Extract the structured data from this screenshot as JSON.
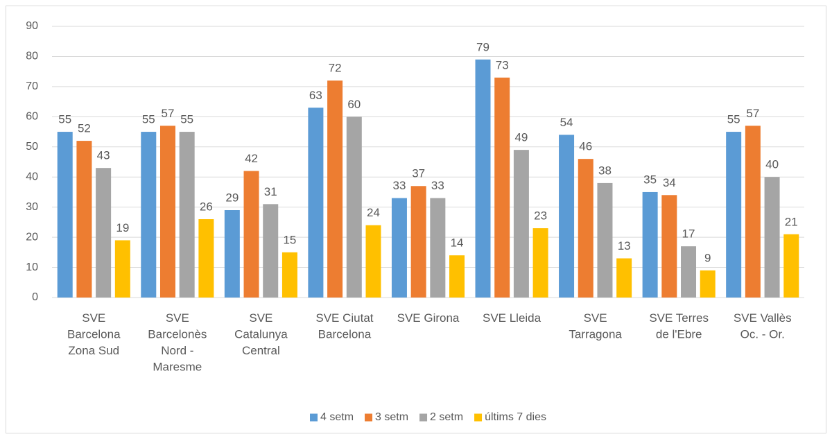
{
  "chart_data": {
    "type": "bar",
    "categories": [
      "SVE Barcelona Zona Sud",
      "SVE Barcelonès Nord - Maresme",
      "SVE Catalunya Central",
      "SVE Ciutat Barcelona",
      "SVE Girona",
      "SVE Lleida",
      "SVE Tarragona",
      "SVE Terres de l'Ebre",
      "SVE Vallès Oc. - Or."
    ],
    "series": [
      {
        "name": "4 setm",
        "color": "#5b9bd5",
        "values": [
          55,
          55,
          29,
          63,
          33,
          79,
          54,
          35,
          55
        ]
      },
      {
        "name": "3 setm",
        "color": "#ed7d31",
        "values": [
          52,
          57,
          42,
          72,
          37,
          73,
          46,
          34,
          57
        ]
      },
      {
        "name": "2 setm",
        "color": "#a5a5a5",
        "values": [
          43,
          55,
          31,
          60,
          33,
          49,
          38,
          17,
          40
        ]
      },
      {
        "name": "últims 7 dies",
        "color": "#ffc000",
        "values": [
          19,
          26,
          15,
          24,
          14,
          23,
          13,
          9,
          21
        ]
      }
    ],
    "ylim": [
      0,
      90
    ],
    "yticks": [
      0,
      10,
      20,
      30,
      40,
      50,
      60,
      70,
      80,
      90
    ],
    "grid": true,
    "legend": "bottom"
  }
}
